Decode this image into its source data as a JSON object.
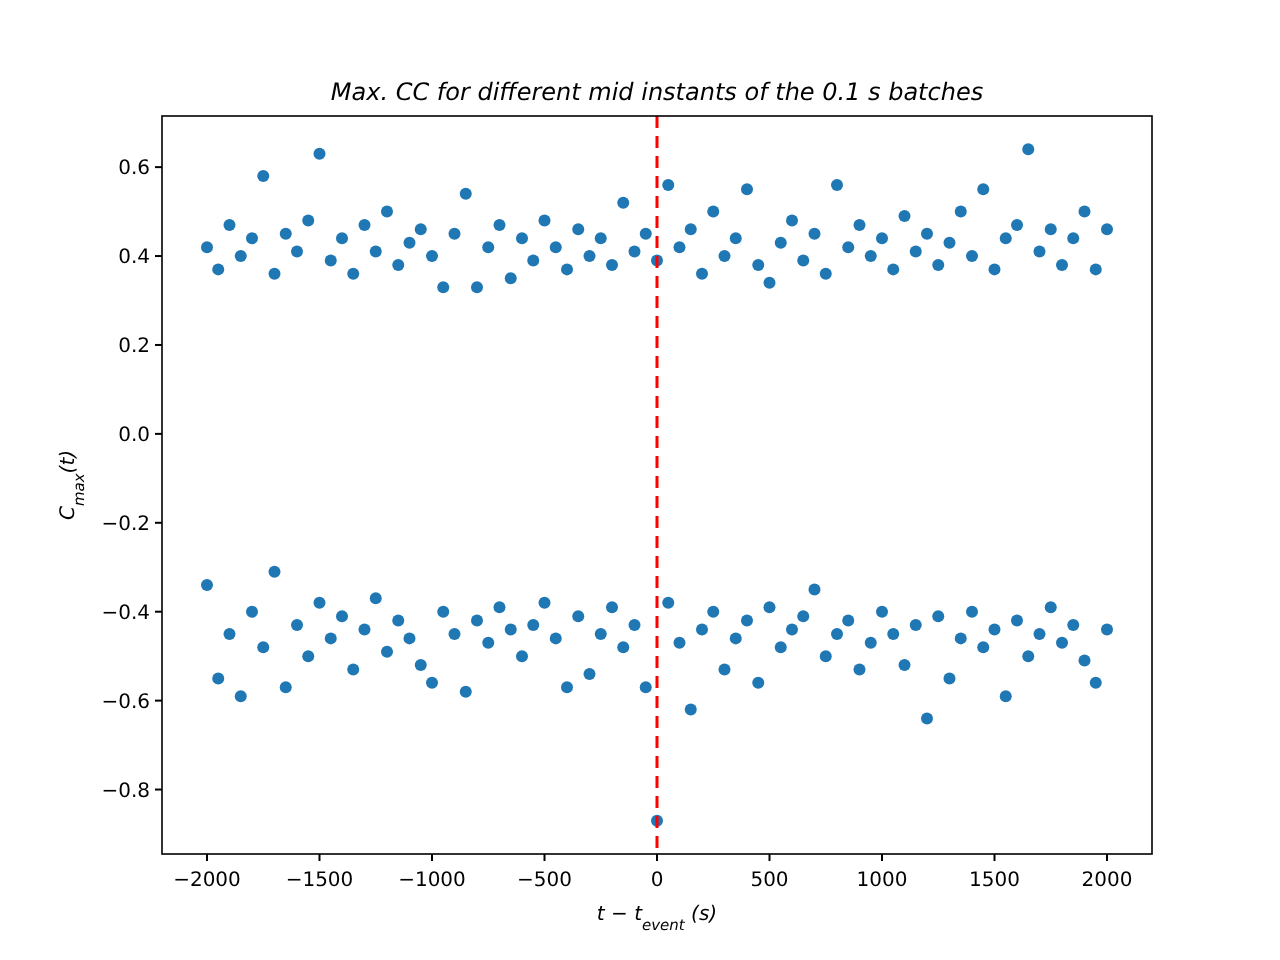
{
  "chart_data": {
    "type": "scatter",
    "title": "Max. CC for different mid instants of the 0.1 s batches",
    "xlabel": "t − t$_{event}$ (s)",
    "ylabel": "C$_{max}$(t)",
    "x": [
      -2000,
      -1950,
      -1900,
      -1850,
      -1800,
      -1750,
      -1700,
      -1650,
      -1600,
      -1550,
      -1500,
      -1450,
      -1400,
      -1350,
      -1300,
      -1250,
      -1200,
      -1150,
      -1100,
      -1050,
      -1000,
      -950,
      -900,
      -850,
      -800,
      -750,
      -700,
      -650,
      -600,
      -550,
      -500,
      -450,
      -400,
      -350,
      -300,
      -250,
      -200,
      -150,
      -100,
      -50,
      0,
      50,
      100,
      150,
      200,
      250,
      300,
      350,
      400,
      450,
      500,
      550,
      600,
      650,
      700,
      750,
      800,
      850,
      900,
      950,
      1000,
      1050,
      1100,
      1150,
      1200,
      1250,
      1300,
      1350,
      1400,
      1450,
      1500,
      1550,
      1600,
      1650,
      1700,
      1750,
      1800,
      1850,
      1900,
      1950,
      2000
    ],
    "series": [
      {
        "color": "#1f77b4",
        "values": [
          0.42,
          0.37,
          0.47,
          0.4,
          0.44,
          0.58,
          0.36,
          0.45,
          0.41,
          0.48,
          0.63,
          0.39,
          0.44,
          0.36,
          0.47,
          0.41,
          0.5,
          0.38,
          0.43,
          0.46,
          0.4,
          0.33,
          0.45,
          0.54,
          0.33,
          0.42,
          0.47,
          0.35,
          0.44,
          0.39,
          0.48,
          0.42,
          0.37,
          0.46,
          0.4,
          0.44,
          0.38,
          0.52,
          0.41,
          0.45,
          0.39,
          0.56,
          0.42,
          0.46,
          0.36,
          0.5,
          0.4,
          0.44,
          0.55,
          0.38,
          0.34,
          0.43,
          0.48,
          0.39,
          0.45,
          0.36,
          0.56,
          0.42,
          0.47,
          0.4,
          0.44,
          0.37,
          0.49,
          0.41,
          0.45,
          0.38,
          0.43,
          0.5,
          0.4,
          0.55,
          0.37,
          0.44,
          0.47,
          0.64,
          0.41,
          0.46,
          0.38,
          0.44,
          0.5,
          0.37,
          0.46
        ]
      },
      {
        "color": "#1f77b4",
        "values": [
          -0.34,
          -0.55,
          -0.45,
          -0.59,
          -0.4,
          -0.48,
          -0.31,
          -0.57,
          -0.43,
          -0.5,
          -0.38,
          -0.46,
          -0.41,
          -0.53,
          -0.44,
          -0.37,
          -0.49,
          -0.42,
          -0.46,
          -0.52,
          -0.56,
          -0.4,
          -0.45,
          -0.58,
          -0.42,
          -0.47,
          -0.39,
          -0.44,
          -0.5,
          -0.43,
          -0.38,
          -0.46,
          -0.57,
          -0.41,
          -0.54,
          -0.45,
          -0.39,
          -0.48,
          -0.43,
          -0.57,
          -0.87,
          -0.38,
          -0.47,
          -0.62,
          -0.44,
          -0.4,
          -0.53,
          -0.46,
          -0.42,
          -0.56,
          -0.39,
          -0.48,
          -0.44,
          -0.41,
          -0.35,
          -0.5,
          -0.45,
          -0.42,
          -0.53,
          -0.47,
          -0.4,
          -0.45,
          -0.52,
          -0.43,
          -0.64,
          -0.41,
          -0.55,
          -0.46,
          -0.4,
          -0.48,
          -0.44,
          -0.59,
          -0.42,
          -0.5,
          -0.45,
          -0.39,
          -0.47,
          -0.43,
          -0.51,
          -0.56,
          -0.44
        ]
      }
    ],
    "marker": "circle",
    "xlim": [
      -2200,
      2200
    ],
    "xticks": [
      {
        "value": -2000,
        "label": "−2000"
      },
      {
        "value": -1500,
        "label": "−1500"
      },
      {
        "value": -1000,
        "label": "−1000"
      },
      {
        "value": -500,
        "label": "−500"
      },
      0,
      500,
      1000,
      1500,
      2000
    ],
    "ylim": [
      -0.945,
      0.715
    ],
    "yticks": [
      {
        "value": -0.8,
        "label": "−0.8"
      },
      {
        "value": -0.6,
        "label": "−0.6"
      },
      {
        "value": -0.4,
        "label": "−0.4"
      },
      {
        "value": -0.2,
        "label": "−0.2"
      },
      {
        "value": 0,
        "label": "0.0"
      },
      0.2,
      0.4,
      0.6
    ],
    "ref_lines": [
      {
        "axis": "x",
        "value": 0,
        "color": "#ff0000",
        "line_style": "dashed"
      }
    ]
  }
}
